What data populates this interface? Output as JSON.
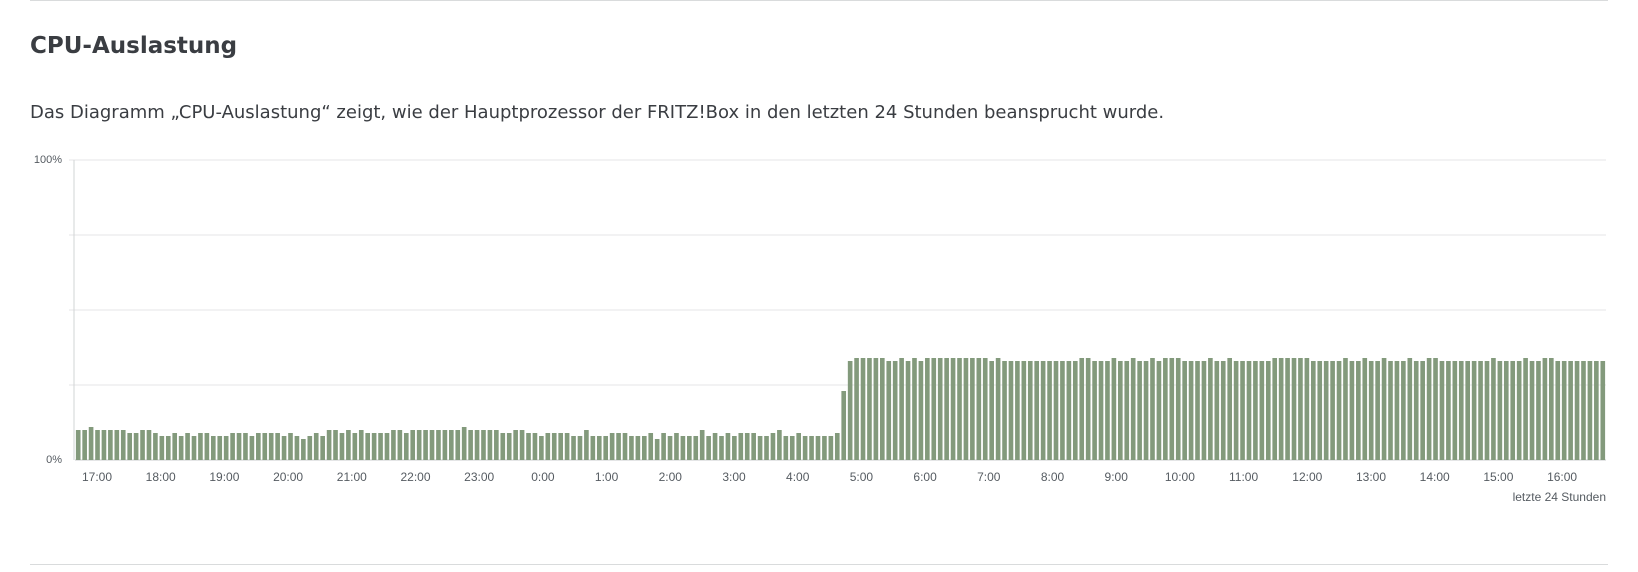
{
  "section": {
    "title": "CPU-Auslastung",
    "description": "Das Diagramm „CPU-Auslastung“ zeigt, wie der Hauptprozessor der FRITZ!Box in den letzten 24 Stunden beansprucht wurde."
  },
  "chart_data": {
    "type": "bar",
    "title": "",
    "xlabel": "letzte 24 Stunden",
    "ylabel": "",
    "ylim": [
      0,
      100
    ],
    "y_tick_labels": [
      "0%",
      "100%"
    ],
    "grid": true,
    "bar_color": "#839a7c",
    "x_tick_labels": [
      "17:00",
      "18:00",
      "19:00",
      "20:00",
      "21:00",
      "22:00",
      "23:00",
      "0:00",
      "1:00",
      "2:00",
      "3:00",
      "4:00",
      "5:00",
      "6:00",
      "7:00",
      "8:00",
      "9:00",
      "10:00",
      "11:00",
      "12:00",
      "13:00",
      "14:00",
      "15:00",
      "16:00"
    ],
    "values": [
      10,
      10,
      11,
      10,
      10,
      10,
      10,
      10,
      9,
      9,
      10,
      10,
      9,
      8,
      8,
      9,
      8,
      9,
      8,
      9,
      9,
      8,
      8,
      8,
      9,
      9,
      9,
      8,
      9,
      9,
      9,
      9,
      8,
      9,
      8,
      7,
      8,
      9,
      8,
      10,
      10,
      9,
      10,
      9,
      10,
      9,
      9,
      9,
      9,
      10,
      10,
      9,
      10,
      10,
      10,
      10,
      10,
      10,
      10,
      10,
      11,
      10,
      10,
      10,
      10,
      10,
      9,
      9,
      10,
      10,
      9,
      9,
      8,
      9,
      9,
      9,
      9,
      8,
      8,
      10,
      8,
      8,
      8,
      9,
      9,
      9,
      8,
      8,
      8,
      9,
      7,
      9,
      8,
      9,
      8,
      8,
      8,
      10,
      8,
      9,
      8,
      9,
      8,
      9,
      9,
      9,
      8,
      8,
      9,
      10,
      8,
      8,
      9,
      8,
      8,
      8,
      8,
      8,
      9,
      23,
      33,
      34,
      34,
      34,
      34,
      34,
      33,
      33,
      34,
      33,
      34,
      33,
      34,
      34,
      34,
      34,
      34,
      34,
      34,
      34,
      34,
      34,
      33,
      34,
      33,
      33,
      33,
      33,
      33,
      33,
      33,
      33,
      33,
      33,
      33,
      33,
      34,
      34,
      33,
      33,
      33,
      34,
      33,
      33,
      34,
      33,
      33,
      34,
      33,
      34,
      34,
      34,
      33,
      33,
      33,
      33,
      34,
      33,
      33,
      34,
      33,
      33,
      33,
      33,
      33,
      33,
      34,
      34,
      34,
      34,
      34,
      34,
      33,
      33,
      33,
      33,
      33,
      34,
      33,
      33,
      34,
      33,
      33,
      34,
      33,
      33,
      33,
      34,
      33,
      33,
      34,
      34,
      33,
      33,
      33,
      33,
      33,
      33,
      33,
      33,
      34,
      33,
      33,
      33,
      33,
      34,
      33,
      33,
      34,
      34,
      33,
      33,
      33,
      33,
      33,
      33,
      33,
      33
    ]
  }
}
